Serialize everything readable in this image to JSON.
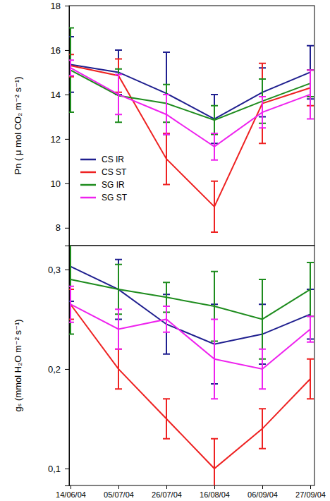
{
  "chart_data": [
    {
      "type": "line",
      "y_label": "Pn ( μ mol CO₂ m⁻² s⁻¹)",
      "categories": [
        "14/06/04",
        "05/07/04",
        "26/07/04",
        "16/08/04",
        "06/09/04",
        "27/09/04"
      ],
      "ylim": [
        7.2,
        18
      ],
      "yticks": [
        8,
        10,
        12,
        14,
        16,
        18
      ],
      "tick_labels": "y",
      "legend": "lower left",
      "series": [
        {
          "name": "CS IR",
          "color": "#1f1f8f",
          "values": [
            15.35,
            15.0,
            14.05,
            12.9,
            14.1,
            15.0
          ],
          "errors": [
            1.25,
            1.0,
            1.85,
            1.1,
            1.1,
            1.2
          ]
        },
        {
          "name": "CS ST",
          "color": "#ee2222",
          "values": [
            15.3,
            14.85,
            11.1,
            8.95,
            13.6,
            14.3
          ],
          "errors": [
            0.5,
            0.75,
            1.15,
            1.15,
            1.8,
            0.8
          ]
        },
        {
          "name": "SG IR",
          "color": "#1e8c1e",
          "values": [
            15.1,
            13.95,
            13.6,
            12.85,
            13.7,
            14.5
          ],
          "errors": [
            1.9,
            1.2,
            0.85,
            0.65,
            1.0,
            0.6
          ]
        },
        {
          "name": "SG ST",
          "color": "#ee22ee",
          "values": [
            15.2,
            14.0,
            13.1,
            11.65,
            13.2,
            14.0
          ],
          "errors": [
            0.35,
            0.9,
            0.9,
            0.6,
            0.7,
            1.1
          ]
        }
      ]
    },
    {
      "type": "line",
      "y_label": "gₛ (mmol H₂O m⁻² s⁻¹)",
      "categories": [
        "14/06/04",
        "05/07/04",
        "26/07/04",
        "16/08/04",
        "06/09/04",
        "27/09/04"
      ],
      "ylim": [
        0.083,
        0.324
      ],
      "yticks": [
        {
          "value": 0.1,
          "label": "0,1"
        },
        {
          "value": 0.2,
          "label": "0,2"
        },
        {
          "value": 0.3,
          "label": "0,3"
        }
      ],
      "series": [
        {
          "color": "#1f1f8f",
          "values": [
            0.303,
            0.28,
            0.245,
            0.225,
            0.235,
            0.255
          ],
          "errors": [
            0.035,
            0.03,
            0.03,
            0.04,
            0.03,
            0.025
          ]
        },
        {
          "color": "#ee2222",
          "values": [
            0.265,
            0.2,
            0.15,
            0.1,
            0.14,
            0.19
          ],
          "errors": [
            0.015,
            0.02,
            0.02,
            0.03,
            0.02,
            0.02
          ]
        },
        {
          "color": "#1e8c1e",
          "values": [
            0.29,
            0.28,
            0.272,
            0.263,
            0.25,
            0.28
          ],
          "errors": [
            0.055,
            0.025,
            0.015,
            0.035,
            0.04,
            0.027
          ]
        },
        {
          "color": "#ee22ee",
          "values": [
            0.265,
            0.24,
            0.25,
            0.21,
            0.2,
            0.24
          ],
          "errors": [
            0.018,
            0.02,
            0.013,
            0.04,
            0.02,
            0.013
          ]
        }
      ]
    }
  ]
}
